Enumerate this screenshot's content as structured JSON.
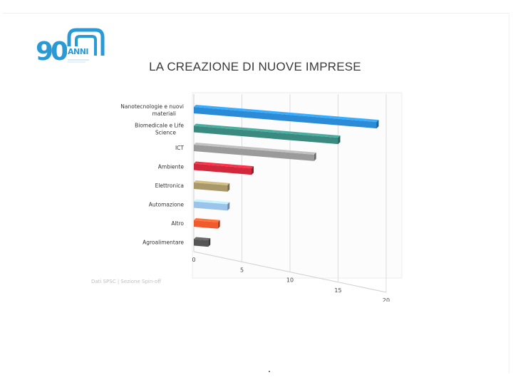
{
  "slide": {
    "title": "LA CREAZIONE DI NUOVE IMPRESE",
    "source_note": "Dati SPSC | Sezione Spin-off"
  },
  "logo": {
    "number": "90",
    "word": "ANNI",
    "color": "#2a9ad6"
  },
  "chart_data": {
    "type": "bar",
    "orientation": "horizontal",
    "style": "3d",
    "categories": [
      "Nanotecnologie e nuovi materiali",
      "Biomedicale e Life Science",
      "ICT",
      "Ambiente",
      "Elettronica",
      "Automazione",
      "Altro",
      "Agroalimentare"
    ],
    "values": [
      19,
      15,
      12.5,
      6,
      3.5,
      3.5,
      2.5,
      1.5
    ],
    "colors": [
      "#2b8bd6",
      "#3b8a80",
      "#9b9b9b",
      "#d2283c",
      "#a99869",
      "#9cc3ea",
      "#f05a2d",
      "#555555"
    ],
    "xlim": [
      0,
      20
    ],
    "xticks": [
      0,
      5,
      10,
      15,
      20
    ],
    "grid": true,
    "title": "",
    "xlabel": "",
    "ylabel": ""
  }
}
